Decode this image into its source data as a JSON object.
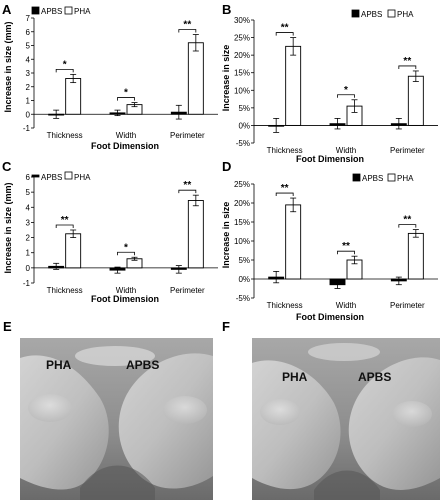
{
  "chart_data": [
    {
      "panel": "A",
      "type": "bar",
      "categories": [
        "Thickness",
        "Width",
        "Perimeter"
      ],
      "series": [
        {
          "name": "APBS",
          "values": [
            0.0,
            0.1,
            0.15
          ],
          "errors": [
            0.3,
            0.2,
            0.5
          ]
        },
        {
          "name": "PHA",
          "values": [
            2.6,
            0.7,
            5.2
          ],
          "errors": [
            0.3,
            0.15,
            0.6
          ]
        }
      ],
      "significance": [
        "*",
        "*",
        "**"
      ],
      "xlabel": "Foot Dimension",
      "ylabel": "Increase in size (mm)",
      "ylim": [
        -1,
        7
      ],
      "yticks": [
        "-1",
        "0",
        "1",
        "2",
        "3",
        "4",
        "5",
        "6",
        "7"
      ],
      "legend_position": "top-left"
    },
    {
      "panel": "B",
      "type": "bar",
      "categories": [
        "Thickness",
        "Width",
        "Perimeter"
      ],
      "series": [
        {
          "name": "APBS",
          "values": [
            0.0,
            0.5,
            0.5
          ],
          "errors": [
            2.0,
            1.5,
            1.5
          ]
        },
        {
          "name": "PHA",
          "values": [
            22.5,
            5.5,
            14.0
          ],
          "errors": [
            2.5,
            1.8,
            1.5
          ]
        }
      ],
      "significance": [
        "**",
        "*",
        "**"
      ],
      "xlabel": "Foot Dimension",
      "ylabel": "Increase in size",
      "ylim": [
        -5,
        30
      ],
      "yticks": [
        "-5%",
        "0%",
        "5%",
        "10%",
        "15%",
        "20%",
        "25%",
        "30%"
      ],
      "legend_position": "top-right"
    },
    {
      "panel": "C",
      "type": "bar",
      "categories": [
        "Thickness",
        "Width",
        "Perimeter"
      ],
      "series": [
        {
          "name": "APBS",
          "values": [
            0.1,
            -0.15,
            -0.1
          ],
          "errors": [
            0.2,
            0.2,
            0.25
          ]
        },
        {
          "name": "PHA",
          "values": [
            2.25,
            0.6,
            4.45
          ],
          "errors": [
            0.25,
            0.1,
            0.35
          ]
        }
      ],
      "significance": [
        "**",
        "*",
        "**"
      ],
      "xlabel": "Foot Dimension",
      "ylabel": "Increase in size (mm)",
      "ylim": [
        -1,
        6
      ],
      "yticks": [
        "-1",
        "0",
        "1",
        "2",
        "3",
        "4",
        "5",
        "6"
      ],
      "legend_position": "top-left"
    },
    {
      "panel": "D",
      "type": "bar",
      "categories": [
        "Thickness",
        "Width",
        "Perimeter"
      ],
      "series": [
        {
          "name": "APBS",
          "values": [
            0.5,
            -1.5,
            -0.5
          ],
          "errors": [
            1.5,
            1.0,
            1.0
          ]
        },
        {
          "name": "PHA",
          "values": [
            19.5,
            5.0,
            12.0
          ],
          "errors": [
            1.8,
            1.0,
            1.0
          ]
        }
      ],
      "significance": [
        "**",
        "**",
        "**"
      ],
      "xlabel": "Foot Dimension",
      "ylabel": "Increase in size",
      "ylim": [
        -5,
        25
      ],
      "yticks": [
        "-5%",
        "0%",
        "5%",
        "10%",
        "15%",
        "20%",
        "25%"
      ],
      "legend_position": "top-right"
    }
  ],
  "photos": [
    {
      "panel": "E",
      "labels": [
        "PHA",
        "APBS"
      ]
    },
    {
      "panel": "F",
      "labels": [
        "PHA",
        "APBS"
      ]
    }
  ],
  "colors": {
    "apbs": "#000000",
    "pha": "#ffffff",
    "axis": "#000000"
  }
}
